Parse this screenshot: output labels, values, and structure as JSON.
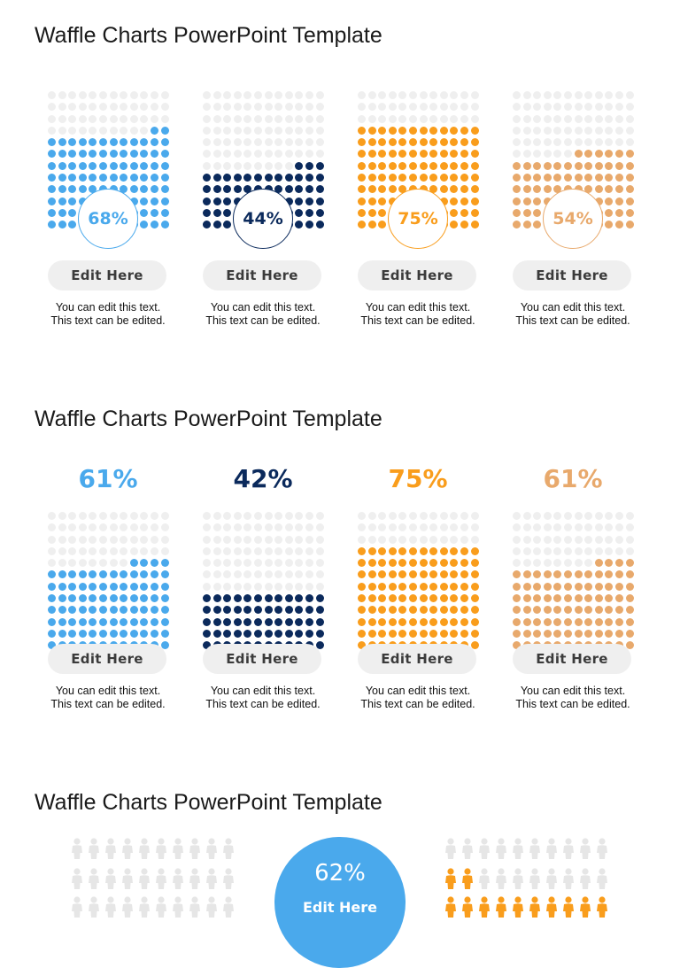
{
  "colors": {
    "blue": "#4aa9ec",
    "navy": "#0b2a5c",
    "orange": "#f99d1c",
    "peach": "#e8a96c",
    "empty": "#efefef"
  },
  "slides": [
    {
      "title": "Waffle Charts PowerPoint Template"
    },
    {
      "title": "Waffle Charts PowerPoint Template"
    },
    {
      "title": "Waffle Charts PowerPoint Template"
    }
  ],
  "chart_data": [
    {
      "type": "waffle",
      "style": "percent-in-circle",
      "grid": {
        "rows": 12,
        "cols": 12
      },
      "series": [
        {
          "value": 68,
          "label": "68%",
          "color": "#4aa9ec",
          "button": "Edit Here",
          "text": [
            "You can edit this text.",
            "This text can be edited."
          ]
        },
        {
          "value": 44,
          "label": "44%",
          "color": "#0b2a5c",
          "button": "Edit Here",
          "text": [
            "You can edit this text.",
            "This text can be edited."
          ]
        },
        {
          "value": 75,
          "label": "75%",
          "color": "#f99d1c",
          "button": "Edit Here",
          "text": [
            "You can edit this text.",
            "This text can be edited."
          ]
        },
        {
          "value": 54,
          "label": "54%",
          "color": "#e8a96c",
          "button": "Edit Here",
          "text": [
            "You can edit this text.",
            "This text can be edited."
          ]
        }
      ]
    },
    {
      "type": "waffle",
      "style": "percent-on-top",
      "grid": {
        "rows": 12,
        "cols": 12
      },
      "series": [
        {
          "value": 61,
          "label": "61%",
          "color": "#4aa9ec",
          "button": "Edit Here",
          "text": [
            "You can edit this text.",
            "This text can be edited."
          ]
        },
        {
          "value": 42,
          "label": "42%",
          "color": "#0b2a5c",
          "button": "Edit Here",
          "text": [
            "You can edit this text.",
            "This text can be edited."
          ]
        },
        {
          "value": 75,
          "label": "75%",
          "color": "#f99d1c",
          "button": "Edit Here",
          "text": [
            "You can edit this text.",
            "This text can be edited."
          ]
        },
        {
          "value": 61,
          "label": "61%",
          "color": "#e8a96c",
          "button": "Edit Here",
          "text": [
            "You can edit this text.",
            "This text can be edited."
          ]
        }
      ]
    },
    {
      "type": "waffle",
      "style": "people-icons",
      "center": {
        "value": 62,
        "label": "62%",
        "button": "Edit Here",
        "color": "#4aa9ec"
      },
      "groups": [
        {
          "color": "#e6e6e6",
          "cols": 10,
          "visible_rows": [
            {
              "filled": 0
            },
            {
              "filled": 0
            },
            {
              "filled": 0
            }
          ]
        },
        {
          "color": "#f99d1c",
          "cols": 10,
          "visible_rows": [
            {
              "filled": 0
            },
            {
              "filled": 2
            },
            {
              "filled": 10
            }
          ]
        }
      ]
    }
  ]
}
